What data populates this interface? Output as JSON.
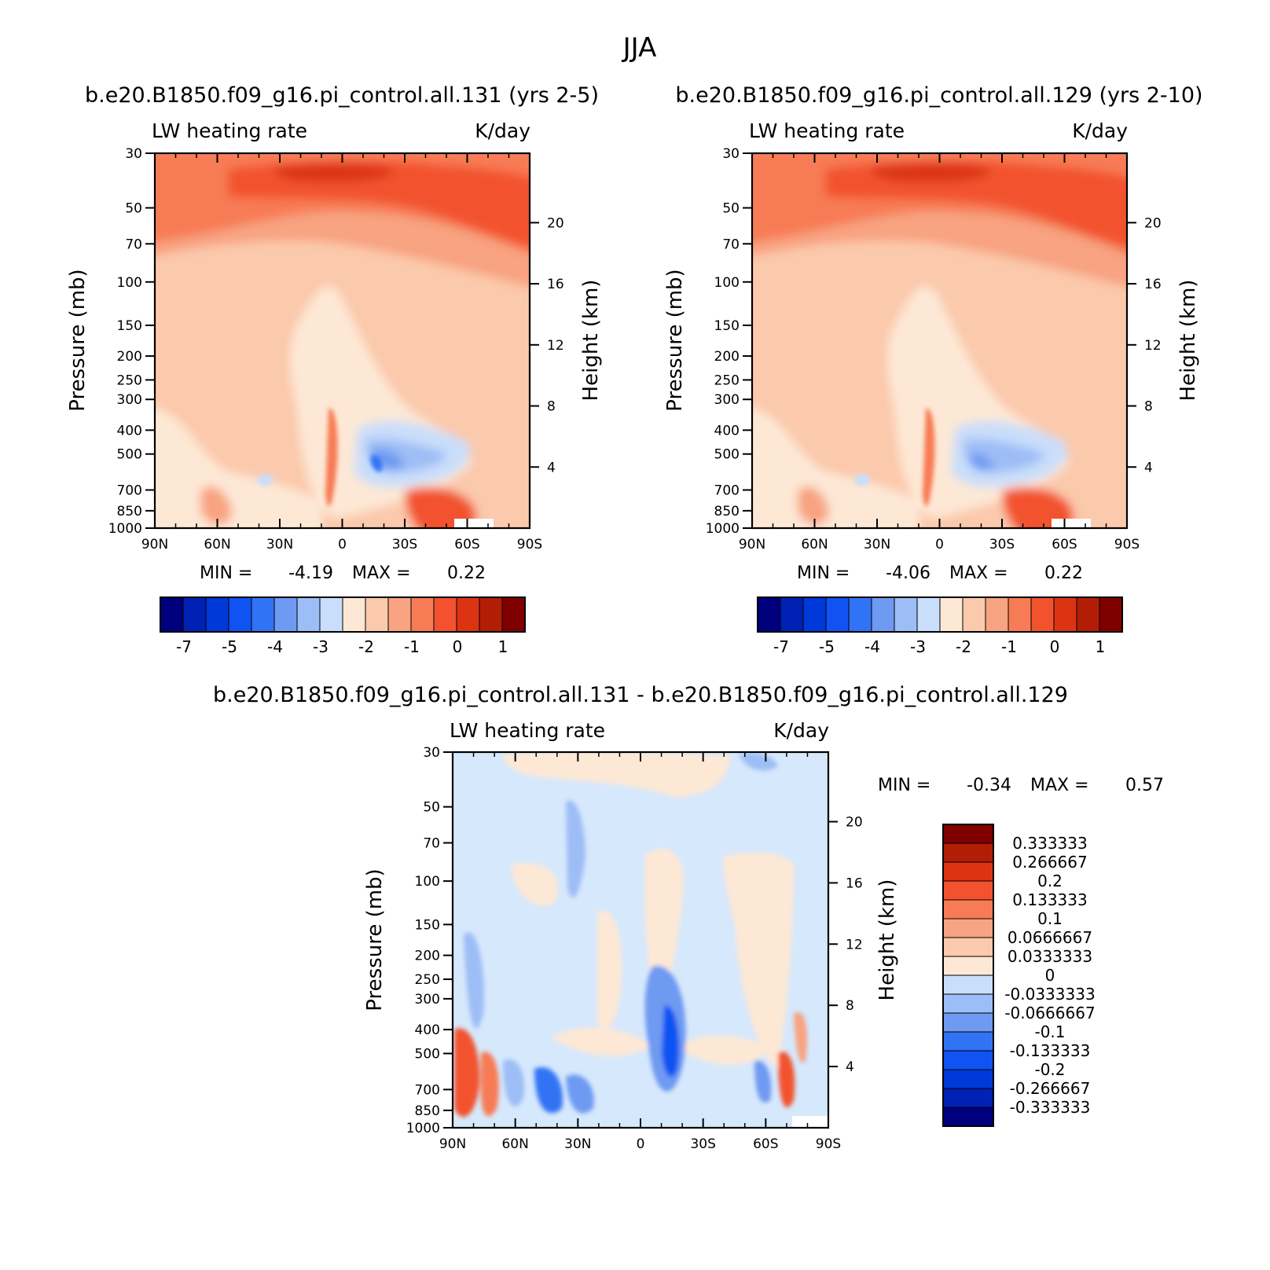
{
  "figure": {
    "title": "JJA"
  },
  "panels": [
    {
      "id": "case1",
      "title": "b.e20.B1850.f09_g16.pi_control.all.131 (yrs 2-5)",
      "left_label": "LW heating rate",
      "right_label": "K/day",
      "ylabel": "Pressure (mb)",
      "y2label": "Height (km)",
      "stats": {
        "min_label": "MIN =",
        "min": "-4.19",
        "max_label": "MAX =",
        "max": "0.22"
      },
      "colorbar_labels": [
        "-7",
        "-5",
        "-4",
        "-3",
        "-2",
        "-1",
        "0",
        "1"
      ]
    },
    {
      "id": "case2",
      "title": "b.e20.B1850.f09_g16.pi_control.all.129 (yrs 2-10)",
      "left_label": "LW heating rate",
      "right_label": "K/day",
      "ylabel": "Pressure (mb)",
      "y2label": "Height (km)",
      "stats": {
        "min_label": "MIN =",
        "min": "-4.06",
        "max_label": "MAX =",
        "max": "0.22"
      },
      "colorbar_labels": [
        "-7",
        "-5",
        "-4",
        "-3",
        "-2",
        "-1",
        "0",
        "1"
      ]
    },
    {
      "id": "diff",
      "title": "b.e20.B1850.f09_g16.pi_control.all.131 - b.e20.B1850.f09_g16.pi_control.all.129",
      "left_label": "LW heating rate",
      "right_label": "K/day",
      "ylabel": "Pressure (mb)",
      "y2label": "Height (km)",
      "stats": {
        "min_label": "MIN =",
        "min": "-0.34",
        "max_label": "MAX =",
        "max": "0.57"
      },
      "colorbar_labels": [
        "0.333333",
        "0.266667",
        "0.2",
        "0.133333",
        "0.1",
        "0.0666667",
        "0.0333333",
        "0",
        "-0.0333333",
        "-0.0666667",
        "-0.1",
        "-0.133333",
        "-0.2",
        "-0.266667",
        "-0.333333"
      ]
    }
  ],
  "chart_data": [
    {
      "type": "heatmap",
      "title": "b.e20.B1850.f09_g16.pi_control.all.131 (yrs 2-5)",
      "variable": "LW heating rate",
      "units": "K/day",
      "xlabel": "",
      "ylabel": "Pressure (mb)",
      "y2label": "Height (km)",
      "x_ticks": [
        "90N",
        "60N",
        "30N",
        "0",
        "30S",
        "60S",
        "90S"
      ],
      "xlim": [
        90,
        -90
      ],
      "y_ticks": [
        30,
        50,
        70,
        100,
        150,
        200,
        250,
        300,
        400,
        500,
        700,
        850,
        1000
      ],
      "y_tick_labels": [
        "30",
        "50",
        "70",
        "100",
        "150",
        "200",
        "250",
        "300",
        "400",
        "500",
        "700",
        "850",
        "1000"
      ],
      "ylim": [
        1000,
        30
      ],
      "yscale": "log",
      "y2_ticks": [
        20,
        16,
        12,
        8,
        4
      ],
      "min": -4.19,
      "max": 0.22,
      "levels": [
        -7,
        -6,
        -5,
        -4.5,
        -4,
        -3.5,
        -3,
        -2.5,
        -2,
        -1.5,
        -1,
        -0.5,
        0,
        0.5,
        1
      ],
      "colors": [
        "#00007f",
        "#0021b3",
        "#0039d9",
        "#1053f2",
        "#3173f5",
        "#6e9af2",
        "#9dbdf6",
        "#c9defa",
        "#fde8d5",
        "#fbc9ac",
        "#f8a381",
        "#f77b55",
        "#f2522d",
        "#dc3412",
        "#b21e05",
        "#800000"
      ]
    },
    {
      "type": "heatmap",
      "title": "b.e20.B1850.f09_g16.pi_control.all.129 (yrs 2-10)",
      "variable": "LW heating rate",
      "units": "K/day",
      "xlabel": "",
      "ylabel": "Pressure (mb)",
      "y2label": "Height (km)",
      "x_ticks": [
        "90N",
        "60N",
        "30N",
        "0",
        "30S",
        "60S",
        "90S"
      ],
      "xlim": [
        90,
        -90
      ],
      "y_ticks": [
        30,
        50,
        70,
        100,
        150,
        200,
        250,
        300,
        400,
        500,
        700,
        850,
        1000
      ],
      "y_tick_labels": [
        "30",
        "50",
        "70",
        "100",
        "150",
        "200",
        "250",
        "300",
        "400",
        "500",
        "700",
        "850",
        "1000"
      ],
      "ylim": [
        1000,
        30
      ],
      "yscale": "log",
      "y2_ticks": [
        20,
        16,
        12,
        8,
        4
      ],
      "min": -4.06,
      "max": 0.22,
      "levels": [
        -7,
        -6,
        -5,
        -4.5,
        -4,
        -3.5,
        -3,
        -2.5,
        -2,
        -1.5,
        -1,
        -0.5,
        0,
        0.5,
        1
      ],
      "colors": [
        "#00007f",
        "#0021b3",
        "#0039d9",
        "#1053f2",
        "#3173f5",
        "#6e9af2",
        "#9dbdf6",
        "#c9defa",
        "#fde8d5",
        "#fbc9ac",
        "#f8a381",
        "#f77b55",
        "#f2522d",
        "#dc3412",
        "#b21e05",
        "#800000"
      ]
    },
    {
      "type": "heatmap",
      "title": "b.e20.B1850.f09_g16.pi_control.all.131 - b.e20.B1850.f09_g16.pi_control.all.129",
      "variable": "LW heating rate",
      "units": "K/day",
      "xlabel": "",
      "ylabel": "Pressure (mb)",
      "y2label": "Height (km)",
      "x_ticks": [
        "90N",
        "60N",
        "30N",
        "0",
        "30S",
        "60S",
        "90S"
      ],
      "xlim": [
        90,
        -90
      ],
      "y_ticks": [
        30,
        50,
        70,
        100,
        150,
        200,
        250,
        300,
        400,
        500,
        700,
        850,
        1000
      ],
      "y_tick_labels": [
        "30",
        "50",
        "70",
        "100",
        "150",
        "200",
        "250",
        "300",
        "400",
        "500",
        "700",
        "850",
        "1000"
      ],
      "ylim": [
        1000,
        30
      ],
      "yscale": "log",
      "y2_ticks": [
        20,
        16,
        12,
        8,
        4
      ],
      "min": -0.34,
      "max": 0.57,
      "levels": [
        0.333333,
        0.266667,
        0.2,
        0.133333,
        0.1,
        0.0666667,
        0.0333333,
        0,
        -0.0333333,
        -0.0666667,
        -0.1,
        -0.133333,
        -0.2,
        -0.266667,
        -0.333333
      ],
      "colors": [
        "#800000",
        "#b21e05",
        "#dc3412",
        "#f2522d",
        "#f77b55",
        "#f8a381",
        "#fbc9ac",
        "#fde8d5",
        "#c9defa",
        "#9dbdf6",
        "#6e9af2",
        "#3173f5",
        "#1053f2",
        "#0039d9",
        "#0021b3",
        "#00007f"
      ]
    }
  ]
}
